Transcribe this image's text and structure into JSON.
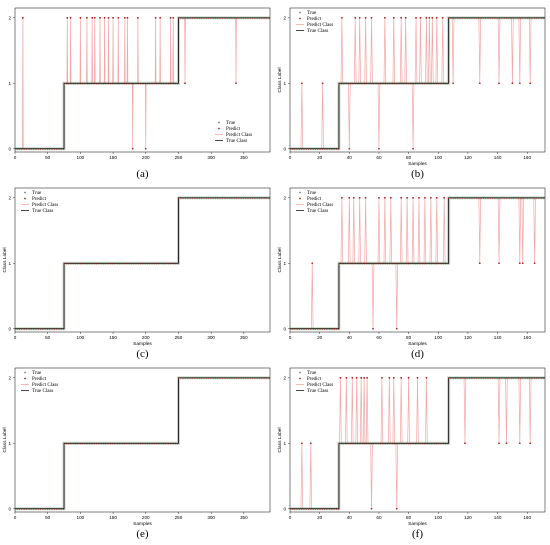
{
  "figure": {
    "legend_labels": [
      "True",
      "Predict",
      "Predict Class",
      "True Class"
    ],
    "colors": {
      "true_marker": "#7f7f7f",
      "predict_marker": "#b22222",
      "predict_class_line": "#f4a6a6",
      "true_class_line": "#1a1a1a",
      "true_class_band": "#5a8a5a"
    }
  },
  "chart_data": [
    {
      "id": "a",
      "panel_label": "(a)",
      "type": "line",
      "xlabel": "",
      "ylabel": "",
      "xlim": [
        0,
        390
      ],
      "ylim": [
        -0.05,
        2.15
      ],
      "xticks": [
        0,
        50,
        100,
        150,
        200,
        250,
        300,
        350
      ],
      "yticks": [
        0,
        1,
        2
      ],
      "legend": "bottom-right",
      "true_segments": [
        {
          "x0": 0,
          "x1": 75,
          "y": 0
        },
        {
          "x0": 75,
          "x1": 250,
          "y": 1
        },
        {
          "x0": 250,
          "x1": 390,
          "y": 2
        }
      ],
      "mispredictions": [
        {
          "x": 12,
          "y": 2
        },
        {
          "x": 80,
          "y": 2
        },
        {
          "x": 85,
          "y": 2
        },
        {
          "x": 100,
          "y": 2
        },
        {
          "x": 110,
          "y": 2
        },
        {
          "x": 118,
          "y": 2
        },
        {
          "x": 122,
          "y": 2
        },
        {
          "x": 130,
          "y": 2
        },
        {
          "x": 137,
          "y": 2
        },
        {
          "x": 143,
          "y": 2
        },
        {
          "x": 150,
          "y": 2
        },
        {
          "x": 158,
          "y": 2
        },
        {
          "x": 168,
          "y": 2
        },
        {
          "x": 172,
          "y": 2
        },
        {
          "x": 180,
          "y": 0
        },
        {
          "x": 188,
          "y": 2
        },
        {
          "x": 200,
          "y": 0
        },
        {
          "x": 215,
          "y": 2
        },
        {
          "x": 222,
          "y": 2
        },
        {
          "x": 238,
          "y": 2
        },
        {
          "x": 242,
          "y": 2
        },
        {
          "x": 260,
          "y": 1
        },
        {
          "x": 338,
          "y": 1
        }
      ]
    },
    {
      "id": "b",
      "panel_label": "(b)",
      "type": "line",
      "xlabel": "Samples",
      "ylabel": "Class Label",
      "xlim": [
        0,
        172
      ],
      "ylim": [
        -0.05,
        2.15
      ],
      "xticks": [
        0,
        20,
        40,
        60,
        80,
        100,
        120,
        140,
        160
      ],
      "yticks": [
        0,
        1,
        2
      ],
      "legend": "top-left",
      "true_segments": [
        {
          "x0": 0,
          "x1": 33,
          "y": 0
        },
        {
          "x0": 33,
          "x1": 107,
          "y": 1
        },
        {
          "x0": 107,
          "x1": 172,
          "y": 2
        }
      ],
      "mispredictions": [
        {
          "x": 8,
          "y": 1
        },
        {
          "x": 22,
          "y": 1
        },
        {
          "x": 35,
          "y": 2
        },
        {
          "x": 40,
          "y": 0
        },
        {
          "x": 44,
          "y": 2
        },
        {
          "x": 47,
          "y": 2
        },
        {
          "x": 51,
          "y": 2
        },
        {
          "x": 55,
          "y": 2
        },
        {
          "x": 60,
          "y": 0
        },
        {
          "x": 64,
          "y": 2
        },
        {
          "x": 70,
          "y": 2
        },
        {
          "x": 75,
          "y": 2
        },
        {
          "x": 78,
          "y": 2
        },
        {
          "x": 83,
          "y": 0
        },
        {
          "x": 85,
          "y": 2
        },
        {
          "x": 88,
          "y": 2
        },
        {
          "x": 92,
          "y": 2
        },
        {
          "x": 94,
          "y": 2
        },
        {
          "x": 96,
          "y": 2
        },
        {
          "x": 99,
          "y": 2
        },
        {
          "x": 103,
          "y": 2
        },
        {
          "x": 110,
          "y": 1
        },
        {
          "x": 128,
          "y": 1
        },
        {
          "x": 141,
          "y": 1
        },
        {
          "x": 150,
          "y": 1
        },
        {
          "x": 155,
          "y": 1
        },
        {
          "x": 162,
          "y": 1
        }
      ]
    },
    {
      "id": "c",
      "panel_label": "(c)",
      "type": "line",
      "xlabel": "Samples",
      "ylabel": "Class Label",
      "xlim": [
        0,
        390
      ],
      "ylim": [
        -0.05,
        2.15
      ],
      "xticks": [
        0,
        50,
        100,
        150,
        200,
        250,
        300,
        350
      ],
      "yticks": [
        0,
        1,
        2
      ],
      "legend": "top-left",
      "true_segments": [
        {
          "x0": 0,
          "x1": 75,
          "y": 0
        },
        {
          "x0": 75,
          "x1": 250,
          "y": 1
        },
        {
          "x0": 250,
          "x1": 390,
          "y": 2
        }
      ],
      "mispredictions": []
    },
    {
      "id": "d",
      "panel_label": "(d)",
      "type": "line",
      "xlabel": "Samples",
      "ylabel": "Class Label",
      "xlim": [
        0,
        172
      ],
      "ylim": [
        -0.05,
        2.15
      ],
      "xticks": [
        0,
        20,
        40,
        60,
        80,
        100,
        120,
        140,
        160
      ],
      "yticks": [
        0,
        1,
        2
      ],
      "legend": "top-left",
      "true_segments": [
        {
          "x0": 0,
          "x1": 33,
          "y": 0
        },
        {
          "x0": 33,
          "x1": 107,
          "y": 1
        },
        {
          "x0": 107,
          "x1": 172,
          "y": 2
        }
      ],
      "mispredictions": [
        {
          "x": 15,
          "y": 1
        },
        {
          "x": 30,
          "y": 0
        },
        {
          "x": 35,
          "y": 2
        },
        {
          "x": 40,
          "y": 2
        },
        {
          "x": 43,
          "y": 2
        },
        {
          "x": 47,
          "y": 2
        },
        {
          "x": 51,
          "y": 2
        },
        {
          "x": 56,
          "y": 0
        },
        {
          "x": 60,
          "y": 2
        },
        {
          "x": 64,
          "y": 2
        },
        {
          "x": 68,
          "y": 2
        },
        {
          "x": 72,
          "y": 0
        },
        {
          "x": 75,
          "y": 2
        },
        {
          "x": 79,
          "y": 2
        },
        {
          "x": 83,
          "y": 2
        },
        {
          "x": 87,
          "y": 2
        },
        {
          "x": 91,
          "y": 2
        },
        {
          "x": 95,
          "y": 2
        },
        {
          "x": 99,
          "y": 2
        },
        {
          "x": 104,
          "y": 2
        },
        {
          "x": 128,
          "y": 1
        },
        {
          "x": 141,
          "y": 1
        },
        {
          "x": 155,
          "y": 1
        },
        {
          "x": 157,
          "y": 1
        },
        {
          "x": 165,
          "y": 1
        }
      ]
    },
    {
      "id": "e",
      "panel_label": "(e)",
      "type": "line",
      "xlabel": "Samples",
      "ylabel": "Class Label",
      "xlim": [
        0,
        390
      ],
      "ylim": [
        -0.05,
        2.15
      ],
      "xticks": [
        0,
        50,
        100,
        150,
        200,
        250,
        300,
        350
      ],
      "yticks": [
        0,
        1,
        2
      ],
      "legend": "top-left",
      "true_segments": [
        {
          "x0": 0,
          "x1": 75,
          "y": 0
        },
        {
          "x0": 75,
          "x1": 250,
          "y": 1
        },
        {
          "x0": 250,
          "x1": 390,
          "y": 2
        }
      ],
      "mispredictions": []
    },
    {
      "id": "f",
      "panel_label": "(f)",
      "type": "line",
      "xlabel": "Samples",
      "ylabel": "Class Label",
      "xlim": [
        0,
        172
      ],
      "ylim": [
        -0.05,
        2.15
      ],
      "xticks": [
        0,
        20,
        40,
        60,
        80,
        100,
        120,
        140,
        160
      ],
      "yticks": [
        0,
        1,
        2
      ],
      "legend": "top-left",
      "true_segments": [
        {
          "x0": 0,
          "x1": 33,
          "y": 0
        },
        {
          "x0": 33,
          "x1": 107,
          "y": 1
        },
        {
          "x0": 107,
          "x1": 172,
          "y": 2
        }
      ],
      "mispredictions": [
        {
          "x": 8,
          "y": 1
        },
        {
          "x": 14,
          "y": 1
        },
        {
          "x": 34,
          "y": 2
        },
        {
          "x": 38,
          "y": 2
        },
        {
          "x": 42,
          "y": 2
        },
        {
          "x": 45,
          "y": 2
        },
        {
          "x": 48,
          "y": 2
        },
        {
          "x": 50,
          "y": 2
        },
        {
          "x": 52,
          "y": 2
        },
        {
          "x": 55,
          "y": 0
        },
        {
          "x": 62,
          "y": 2
        },
        {
          "x": 67,
          "y": 2
        },
        {
          "x": 70,
          "y": 2
        },
        {
          "x": 72,
          "y": 0
        },
        {
          "x": 75,
          "y": 2
        },
        {
          "x": 80,
          "y": 2
        },
        {
          "x": 86,
          "y": 2
        },
        {
          "x": 92,
          "y": 2
        },
        {
          "x": 118,
          "y": 1
        },
        {
          "x": 141,
          "y": 1
        },
        {
          "x": 146,
          "y": 1
        },
        {
          "x": 155,
          "y": 1
        },
        {
          "x": 162,
          "y": 1
        }
      ]
    }
  ]
}
